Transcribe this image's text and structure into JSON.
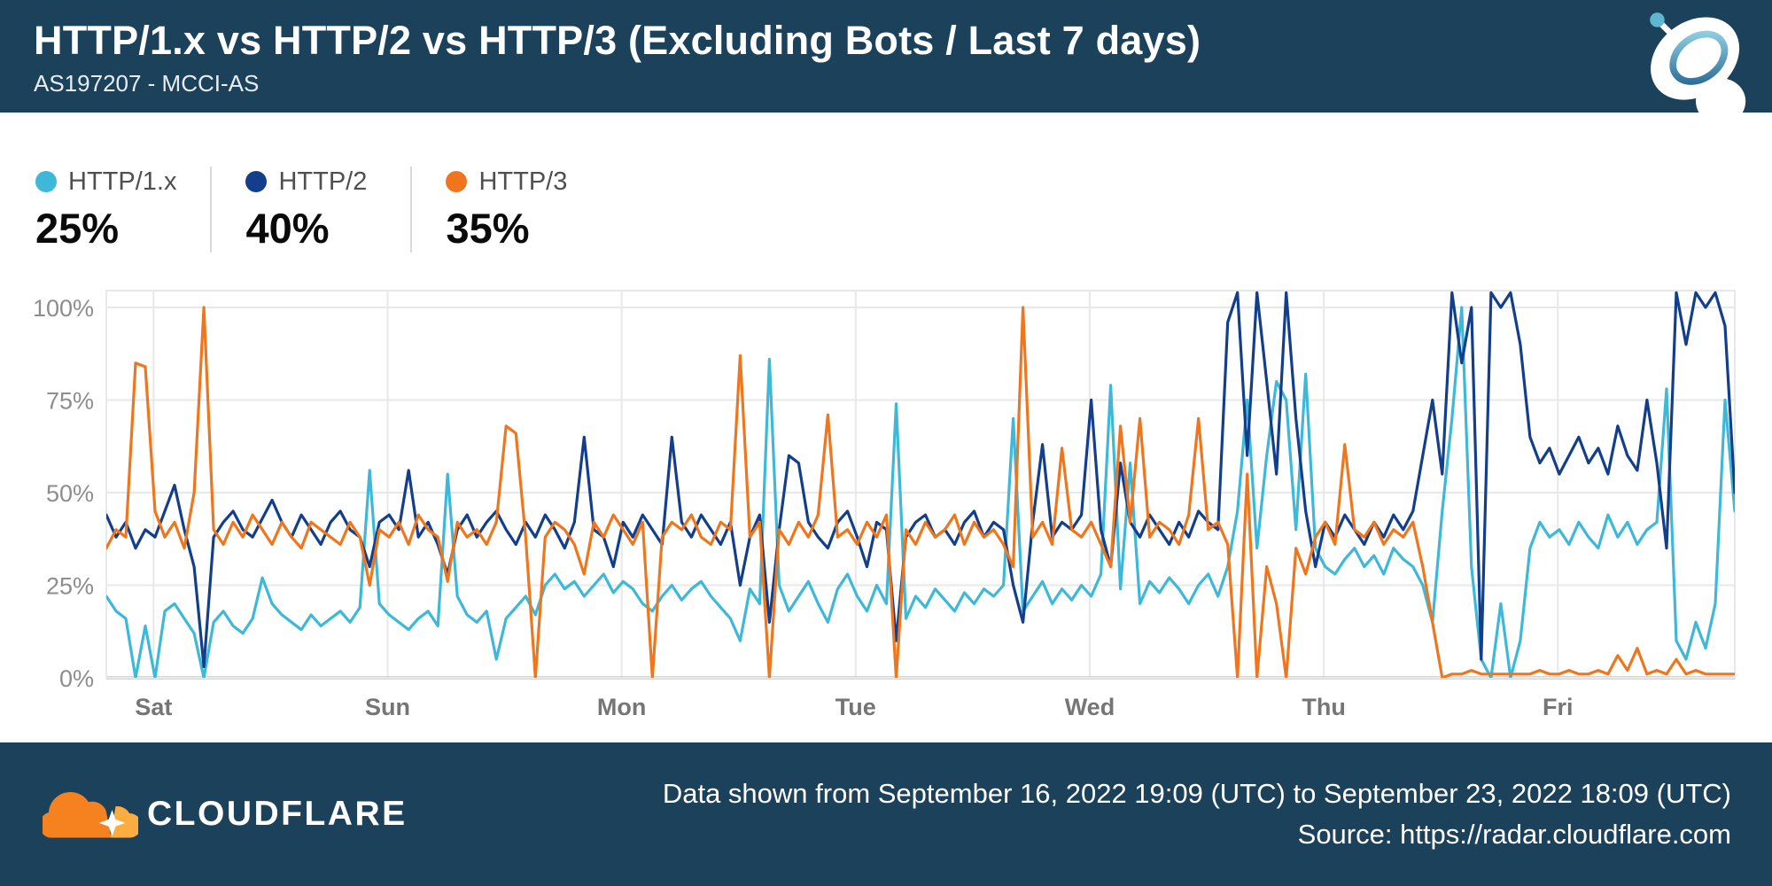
{
  "header": {
    "title": "HTTP/1.x vs HTTP/2 vs HTTP/3 (Excluding Bots / Last 7 days)",
    "subtitle": "AS197207 - MCCI-AS",
    "bg_color": "#1C415A"
  },
  "legend": {
    "items": [
      {
        "label": "HTTP/1.x",
        "value": "25%",
        "color": "#3DB8D9"
      },
      {
        "label": "HTTP/2",
        "value": "40%",
        "color": "#123E8C"
      },
      {
        "label": "HTTP/3",
        "value": "35%",
        "color": "#F0761D"
      }
    ]
  },
  "chart_data": {
    "type": "line",
    "title": "HTTP/1.x vs HTTP/2 vs HTTP/3 (Excluding Bots / Last 7 days)",
    "unit": "%",
    "x_range_hours": 167,
    "ylim": [
      0,
      104.5
    ],
    "grid": true,
    "legend_position": "top",
    "y_ticks": [
      0,
      25,
      50,
      75,
      100
    ],
    "y_tick_suffix": "%",
    "x_ticks": [
      {
        "label": "Sat",
        "hour": 4.85
      },
      {
        "label": "Sun",
        "hour": 28.85
      },
      {
        "label": "Mon",
        "hour": 52.85
      },
      {
        "label": "Tue",
        "hour": 76.85
      },
      {
        "label": "Wed",
        "hour": 100.85
      },
      {
        "label": "Thu",
        "hour": 124.85
      },
      {
        "label": "Fri",
        "hour": 148.85
      }
    ],
    "series": [
      {
        "name": "HTTP/1.x",
        "color": "#3DB8D9",
        "values": [
          22,
          18,
          16,
          0,
          14,
          0,
          18,
          20,
          16,
          12,
          0,
          15,
          18,
          14,
          12,
          16,
          27,
          20,
          17,
          15,
          13,
          17,
          14,
          16,
          18,
          15,
          19,
          56,
          20,
          17,
          15,
          13,
          16,
          18,
          14,
          55,
          22,
          17,
          15,
          18,
          5,
          16,
          19,
          22,
          17,
          25,
          28,
          24,
          26,
          22,
          25,
          28,
          23,
          26,
          24,
          20,
          18,
          22,
          25,
          21,
          24,
          26,
          22,
          19,
          16,
          10,
          24,
          20,
          86,
          25,
          18,
          22,
          26,
          20,
          15,
          24,
          28,
          22,
          18,
          25,
          20,
          74,
          16,
          22,
          19,
          24,
          21,
          18,
          23,
          20,
          24,
          22,
          25,
          70,
          18,
          22,
          26,
          20,
          24,
          21,
          25,
          22,
          28,
          79,
          24,
          58,
          20,
          26,
          23,
          27,
          24,
          20,
          25,
          28,
          22,
          30,
          45,
          75,
          35,
          60,
          80,
          75,
          40,
          82,
          35,
          30,
          28,
          32,
          35,
          30,
          33,
          28,
          35,
          32,
          30,
          25,
          15,
          45,
          70,
          100,
          30,
          5,
          0,
          20,
          0,
          10,
          35,
          42,
          38,
          40,
          36,
          42,
          38,
          35,
          44,
          38,
          42,
          36,
          40,
          42,
          78,
          10,
          5,
          15,
          8,
          20,
          75,
          45
        ]
      },
      {
        "name": "HTTP/2",
        "color": "#123E8C",
        "values": [
          44,
          38,
          42,
          35,
          40,
          38,
          45,
          52,
          40,
          30,
          3,
          38,
          42,
          45,
          40,
          38,
          43,
          48,
          42,
          38,
          44,
          40,
          36,
          42,
          45,
          40,
          38,
          30,
          42,
          44,
          40,
          56,
          38,
          42,
          36,
          28,
          40,
          44,
          38,
          42,
          45,
          40,
          36,
          42,
          38,
          44,
          40,
          35,
          42,
          65,
          40,
          38,
          30,
          42,
          38,
          44,
          40,
          36,
          65,
          42,
          38,
          44,
          40,
          36,
          42,
          25,
          38,
          44,
          15,
          40,
          60,
          58,
          42,
          38,
          35,
          42,
          45,
          38,
          30,
          42,
          40,
          10,
          38,
          42,
          44,
          38,
          40,
          36,
          42,
          45,
          38,
          42,
          40,
          25,
          15,
          42,
          63,
          38,
          42,
          40,
          44,
          75,
          40,
          30,
          58,
          42,
          38,
          44,
          40,
          36,
          42,
          38,
          45,
          42,
          40,
          96,
          104,
          60,
          104,
          80,
          55,
          104,
          70,
          45,
          30,
          42,
          38,
          44,
          40,
          36,
          42,
          38,
          44,
          40,
          45,
          60,
          75,
          55,
          104,
          85,
          100,
          5,
          104,
          100,
          104,
          90,
          65,
          58,
          62,
          55,
          60,
          65,
          58,
          62,
          55,
          68,
          60,
          56,
          75,
          58,
          35,
          104,
          90,
          104,
          100,
          104,
          95,
          50
        ]
      },
      {
        "name": "HTTP/3",
        "color": "#F0761D",
        "values": [
          35,
          40,
          38,
          85,
          84,
          45,
          38,
          42,
          35,
          50,
          100,
          40,
          36,
          42,
          38,
          44,
          40,
          36,
          42,
          38,
          35,
          42,
          40,
          38,
          36,
          42,
          38,
          25,
          40,
          38,
          42,
          36,
          44,
          40,
          38,
          26,
          42,
          38,
          40,
          36,
          42,
          68,
          66,
          38,
          0,
          38,
          42,
          40,
          36,
          28,
          42,
          38,
          44,
          40,
          36,
          42,
          0,
          38,
          42,
          40,
          44,
          38,
          36,
          42,
          40,
          87,
          38,
          42,
          0,
          40,
          36,
          42,
          38,
          44,
          71,
          38,
          40,
          36,
          42,
          38,
          44,
          0,
          40,
          36,
          42,
          38,
          40,
          44,
          36,
          42,
          38,
          40,
          36,
          30,
          100,
          38,
          42,
          36,
          62,
          40,
          38,
          42,
          36,
          30,
          68,
          42,
          70,
          38,
          42,
          40,
          36,
          44,
          70,
          40,
          42,
          36,
          0,
          55,
          0,
          30,
          20,
          0,
          35,
          28,
          38,
          42,
          36,
          63,
          40,
          38,
          42,
          36,
          40,
          38,
          42,
          30,
          15,
          0,
          1,
          1,
          2,
          1,
          1,
          1,
          1,
          1,
          1,
          2,
          1,
          1,
          2,
          1,
          1,
          2,
          1,
          6,
          2,
          8,
          1,
          2,
          1,
          5,
          1,
          2,
          1,
          1,
          1,
          1
        ]
      }
    ]
  },
  "footer": {
    "brand": "CLOUDFLARE",
    "data_range": "Data shown from September 16, 2022 19:09 (UTC) to September 23, 2022 18:09 (UTC)",
    "source": "Source: https://radar.cloudflare.com",
    "bg_color": "#1C415A",
    "logo_orange": "#F6821F",
    "logo_light_orange": "#FBAD41"
  }
}
